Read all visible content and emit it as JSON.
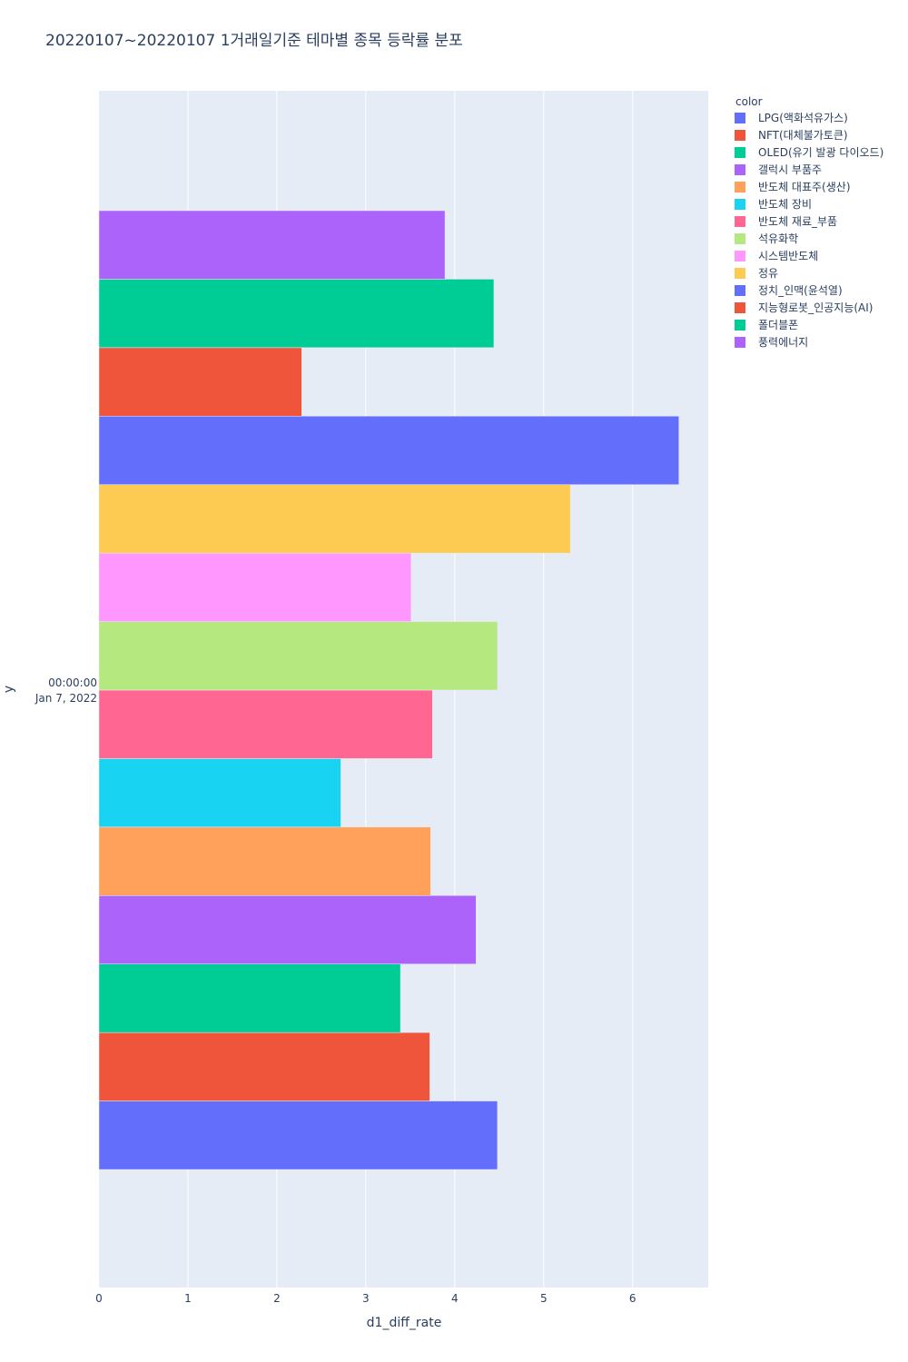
{
  "chart_data": {
    "type": "bar",
    "orientation": "horizontal",
    "title": "20220107~20220107 1거래일기준 테마별 종목 등락률 분포",
    "xlabel": "d1_diff_rate",
    "ylabel": "y",
    "xlim": [
      0,
      6.85
    ],
    "x_ticks": [
      "0",
      "1",
      "2",
      "3",
      "4",
      "5",
      "6"
    ],
    "y_category": {
      "line1": "00:00:00",
      "line2": "Jan 7, 2022"
    },
    "grid": true,
    "legend_title": "color",
    "legend_position": "top-right",
    "series": [
      {
        "name": "LPG(액화석유가스)",
        "value": 4.48,
        "color": "#636efa"
      },
      {
        "name": "NFT(대체불가토큰)",
        "value": 3.72,
        "color": "#EF553B"
      },
      {
        "name": "OLED(유기 발광 다이오드)",
        "value": 3.39,
        "color": "#00cc96"
      },
      {
        "name": "갤럭시 부품주",
        "value": 4.24,
        "color": "#ab63fa"
      },
      {
        "name": "반도체 대표주(생산)",
        "value": 3.73,
        "color": "#FFA15A"
      },
      {
        "name": "반도체 장비",
        "value": 2.72,
        "color": "#19d3f3"
      },
      {
        "name": "반도체 재료_부품",
        "value": 3.75,
        "color": "#FF6692"
      },
      {
        "name": "석유화학",
        "value": 4.48,
        "color": "#B6E880"
      },
      {
        "name": "시스템반도체",
        "value": 3.51,
        "color": "#FF97FF"
      },
      {
        "name": "정유",
        "value": 5.3,
        "color": "#FECB52"
      },
      {
        "name": "정치_인맥(윤석열)",
        "value": 6.52,
        "color": "#636efa"
      },
      {
        "name": "지능형로봇_인공지능(AI)",
        "value": 2.28,
        "color": "#EF553B"
      },
      {
        "name": "폴더블폰",
        "value": 4.44,
        "color": "#00cc96"
      },
      {
        "name": "풍력에너지",
        "value": 3.89,
        "color": "#ab63fa"
      }
    ]
  }
}
